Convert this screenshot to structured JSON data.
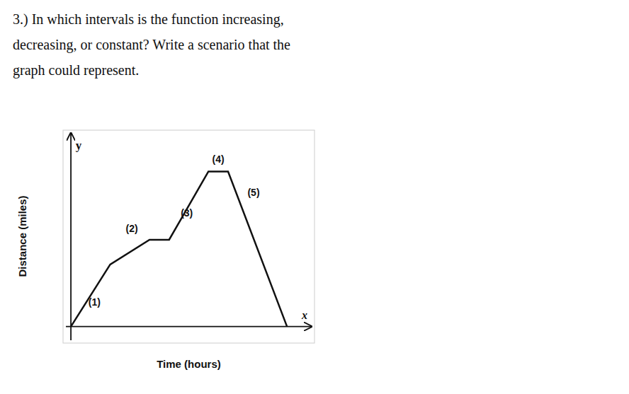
{
  "chart_data": {
    "type": "line",
    "title": [
      "3.) In which intervals is the function increasing,",
      "decreasing, or constant?  Write a scenario that the",
      "graph could represent."
    ],
    "x_label": "Time (hours)",
    "y_label": "Distance (miles)",
    "x": [
      0,
      1,
      2,
      2.5,
      3.5,
      4.0,
      5.5
    ],
    "values": [
      0,
      3.0,
      4.2,
      4.2,
      7.5,
      7.5,
      0
    ],
    "color": "#111111",
    "xlim": [
      -0.2,
      6.2
    ],
    "ylim": [
      -0.8,
      9.5
    ],
    "tick_labels": false,
    "grid": false,
    "annotations": [
      {
        "text": "(1)",
        "x": 0.6,
        "y": 1.2
      },
      {
        "text": "(2)",
        "x": 1.55,
        "y": 4.75
      },
      {
        "text": "(3)",
        "x": 2.95,
        "y": 5.5
      },
      {
        "text": "(4)",
        "x": 3.75,
        "y": 8.1
      },
      {
        "text": "(5)",
        "x": 4.65,
        "y": 6.5
      },
      {
        "text": "y",
        "x": 0.12,
        "y": 9.0
      },
      {
        "text": "x",
        "x": 6.02,
        "y": 0.35
      }
    ]
  }
}
